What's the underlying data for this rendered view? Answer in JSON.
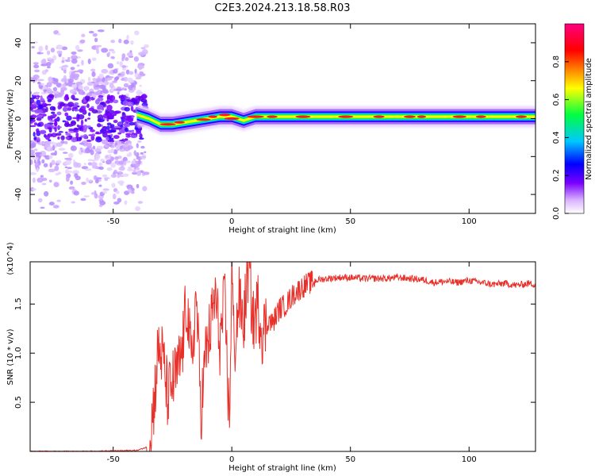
{
  "figure": {
    "title": "C2E3.2024.213.18.58.R03"
  },
  "chart_data": [
    {
      "type": "heatmap",
      "xlabel": "Height of straight line (km)",
      "ylabel": "Frequency (Hz)",
      "xlim": [
        -85,
        128
      ],
      "ylim": [
        -50,
        50
      ],
      "x_ticks": [
        -50,
        0,
        50,
        100
      ],
      "y_ticks": [
        -40,
        -20,
        0,
        20,
        40
      ],
      "colorbar": {
        "label": "Normalized spectral amplitude",
        "range": [
          0,
          1
        ],
        "ticks": [
          0.0,
          0.2,
          0.4,
          0.6,
          0.8
        ],
        "colormap": [
          "#ffffff",
          "#7a00ff",
          "#0000ff",
          "#00c8ff",
          "#00ff40",
          "#ffff00",
          "#ff8000",
          "#ff0000",
          "#ff0080"
        ]
      },
      "ridge": {
        "x": [
          -40,
          -35,
          -30,
          -25,
          -20,
          -15,
          -10,
          -5,
          0,
          5,
          10,
          20,
          30,
          50,
          70,
          90,
          100,
          110,
          128
        ],
        "frequency": [
          2,
          0,
          -3,
          -3,
          -2,
          -1,
          0,
          1,
          1,
          -1,
          1,
          1,
          1,
          1,
          1,
          1,
          1,
          1,
          1
        ]
      },
      "noise_region_x": [
        -85,
        -36
      ]
    },
    {
      "type": "line",
      "xlabel": "Height of straight line (km)",
      "ylabel": "SNR (10 * v/v)",
      "y_multiplier": "(x10^4)",
      "xlim": [
        -85,
        128
      ],
      "ylim": [
        0,
        1.93
      ],
      "x_ticks": [
        -50,
        0,
        50,
        100
      ],
      "y_ticks": [
        0.5,
        1.0,
        1.5
      ],
      "color": "#e8302a",
      "series": [
        {
          "x": [
            -85,
            -60,
            -40,
            -35,
            -33,
            -31,
            -29,
            -27,
            -25,
            -23,
            -21,
            -19,
            -17,
            -15,
            -13,
            -11,
            -9,
            -7,
            -5,
            -3,
            -1,
            0,
            1,
            3,
            5,
            7,
            9,
            11,
            13,
            15,
            17,
            20,
            23,
            26,
            30,
            35,
            40,
            45,
            50,
            55,
            60,
            65,
            70,
            75,
            80,
            85,
            90,
            95,
            100,
            105,
            110,
            115,
            120,
            125,
            128
          ],
          "y": [
            0.0,
            0.0,
            0.01,
            0.05,
            0.45,
            1.05,
            0.95,
            0.55,
            0.7,
            0.8,
            1.0,
            1.55,
            0.85,
            1.6,
            0.4,
            1.0,
            1.25,
            1.6,
            1.1,
            1.55,
            0.25,
            1.9,
            1.0,
            1.55,
            1.3,
            1.9,
            1.3,
            1.5,
            1.2,
            1.35,
            1.3,
            1.45,
            1.5,
            1.6,
            1.68,
            1.74,
            1.76,
            1.77,
            1.77,
            1.76,
            1.76,
            1.76,
            1.77,
            1.76,
            1.75,
            1.72,
            1.73,
            1.72,
            1.74,
            1.72,
            1.7,
            1.71,
            1.69,
            1.71,
            1.7
          ]
        }
      ]
    }
  ]
}
